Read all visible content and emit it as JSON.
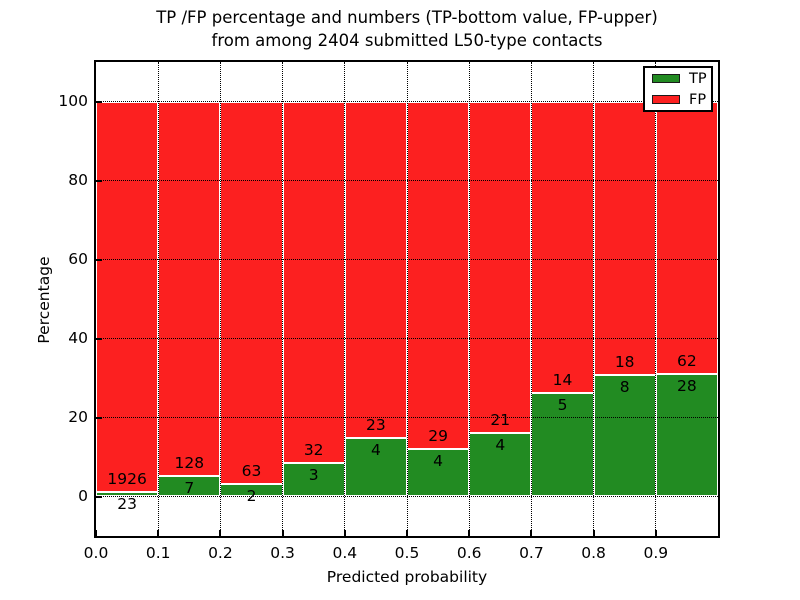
{
  "figure": {
    "title_line1": "TP /FP percentage and numbers (TP-bottom value, FP-upper)",
    "title_line2": "from among 2404 submitted L50-type contacts"
  },
  "chart_data": {
    "type": "bar",
    "stacked": true,
    "normalized_to_percent": true,
    "title": "TP /FP percentage and numbers (TP-bottom value, FP-upper) from among 2404 submitted L50-type contacts",
    "xlabel": "Predicted probability",
    "ylabel": "Percentage",
    "total_submitted": 2404,
    "xlim": [
      0.0,
      1.0
    ],
    "ylim": [
      -10,
      110
    ],
    "bar_bin_width": 0.1,
    "x_tick_labels": [
      "0.0",
      "0.1",
      "0.2",
      "0.3",
      "0.4",
      "0.5",
      "0.6",
      "0.7",
      "0.8",
      "0.9"
    ],
    "y_tick_values": [
      0,
      20,
      40,
      60,
      80,
      100
    ],
    "grid": {
      "style": "dotted",
      "color": "#000000"
    },
    "series": [
      {
        "name": "TP",
        "color": "#228b22",
        "position": "bottom"
      },
      {
        "name": "FP",
        "color": "#fc2020",
        "position": "top"
      }
    ],
    "bins": [
      {
        "range": [
          0.0,
          0.1
        ],
        "tp": 23,
        "fp": 1926,
        "tp_pct": 1.18
      },
      {
        "range": [
          0.1,
          0.2
        ],
        "tp": 7,
        "fp": 128,
        "tp_pct": 5.19
      },
      {
        "range": [
          0.2,
          0.3
        ],
        "tp": 2,
        "fp": 63,
        "tp_pct": 3.08
      },
      {
        "range": [
          0.3,
          0.4
        ],
        "tp": 3,
        "fp": 32,
        "tp_pct": 8.57
      },
      {
        "range": [
          0.4,
          0.5
        ],
        "tp": 4,
        "fp": 23,
        "tp_pct": 14.81
      },
      {
        "range": [
          0.5,
          0.6
        ],
        "tp": 4,
        "fp": 29,
        "tp_pct": 12.12
      },
      {
        "range": [
          0.6,
          0.7
        ],
        "tp": 4,
        "fp": 21,
        "tp_pct": 16.0
      },
      {
        "range": [
          0.7,
          0.8
        ],
        "tp": 5,
        "fp": 14,
        "tp_pct": 26.32
      },
      {
        "range": [
          0.8,
          0.9
        ],
        "tp": 8,
        "fp": 18,
        "tp_pct": 30.77
      },
      {
        "range": [
          0.9,
          1.0
        ],
        "tp": 28,
        "fp": 62,
        "tp_pct": 31.11
      }
    ],
    "legend": {
      "position": "upper right",
      "entries": [
        {
          "label": "TP",
          "color": "#228b22"
        },
        {
          "label": "FP",
          "color": "#fc2020"
        }
      ]
    }
  }
}
